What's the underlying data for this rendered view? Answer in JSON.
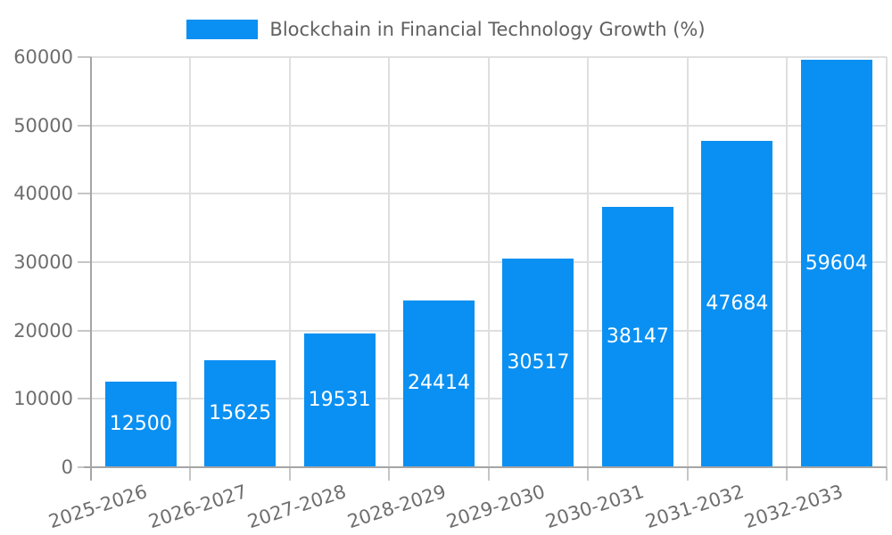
{
  "chart_data": {
    "type": "bar",
    "title": "Blockchain in Financial Technology Growth (%)",
    "categories": [
      "2025-2026",
      "2026-2027",
      "2027-2028",
      "2028-2029",
      "2029-2030",
      "2030-2031",
      "2031-2032",
      "2032-2033"
    ],
    "values": [
      12500,
      15625,
      19531,
      24414,
      30517,
      38147,
      47684,
      59604
    ],
    "xlabel": "",
    "ylabel": "",
    "ylim": [
      0,
      60000
    ],
    "yticks": [
      0,
      10000,
      20000,
      30000,
      40000,
      50000,
      60000
    ],
    "grid": true,
    "legend_position": "top-center",
    "bar_value_labels_inside": true,
    "colors": {
      "bar": "#0a90f2",
      "bar_value_text": "#ffffff",
      "gridline": "#dfdfdf",
      "tick_mark": "#c6c6c6",
      "axis_line": "#a5a5a5",
      "tick_text": "#6e6e6e",
      "legend_text": "#606060",
      "background": "#ffffff"
    }
  }
}
